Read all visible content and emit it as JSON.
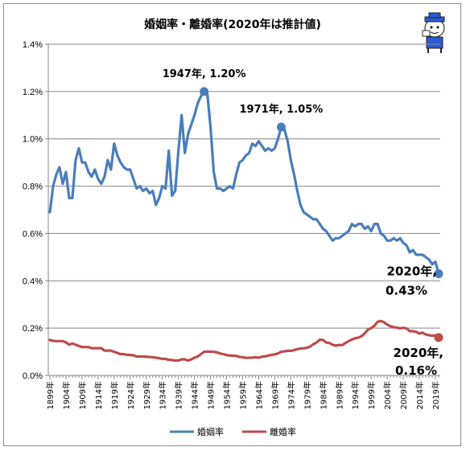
{
  "chart_data": {
    "type": "line",
    "title": "婚姻率・離婚率(2020年は推計値)",
    "ylim": [
      0,
      1.4
    ],
    "yticks": [
      "0.0%",
      "0.2%",
      "0.4%",
      "0.6%",
      "0.8%",
      "1.0%",
      "1.2%",
      "1.4%"
    ],
    "ytick_values": [
      0,
      0.2,
      0.4,
      0.6,
      0.8,
      1.0,
      1.2,
      1.4
    ],
    "x_range": [
      1899,
      2020
    ],
    "xticks": [
      "1899年",
      "1904年",
      "1909年",
      "1914年",
      "1919年",
      "1924年",
      "1929年",
      "1934年",
      "1939年",
      "1944年",
      "1949年",
      "1954年",
      "1959年",
      "1964年",
      "1969年",
      "1974年",
      "1979年",
      "1984年",
      "1989年",
      "1994年",
      "1999年",
      "2004年",
      "2009年",
      "2014年",
      "2019年"
    ],
    "xtick_values": [
      1899,
      1904,
      1909,
      1914,
      1919,
      1924,
      1929,
      1934,
      1939,
      1944,
      1949,
      1954,
      1959,
      1964,
      1969,
      1974,
      1979,
      1984,
      1989,
      1994,
      1999,
      2004,
      2009,
      2014,
      2019
    ],
    "grid": true,
    "legend_position": "bottom",
    "series": [
      {
        "name": "婚姻率",
        "color": "#4a7ebb",
        "points": [
          [
            1899,
            0.69
          ],
          [
            1900,
            0.8
          ],
          [
            1901,
            0.85
          ],
          [
            1902,
            0.88
          ],
          [
            1903,
            0.81
          ],
          [
            1904,
            0.86
          ],
          [
            1905,
            0.75
          ],
          [
            1906,
            0.75
          ],
          [
            1907,
            0.91
          ],
          [
            1908,
            0.96
          ],
          [
            1909,
            0.9
          ],
          [
            1910,
            0.9
          ],
          [
            1911,
            0.86
          ],
          [
            1912,
            0.84
          ],
          [
            1913,
            0.87
          ],
          [
            1914,
            0.83
          ],
          [
            1915,
            0.81
          ],
          [
            1916,
            0.84
          ],
          [
            1917,
            0.91
          ],
          [
            1918,
            0.87
          ],
          [
            1919,
            0.98
          ],
          [
            1920,
            0.93
          ],
          [
            1921,
            0.9
          ],
          [
            1922,
            0.88
          ],
          [
            1923,
            0.87
          ],
          [
            1924,
            0.87
          ],
          [
            1925,
            0.83
          ],
          [
            1926,
            0.79
          ],
          [
            1927,
            0.8
          ],
          [
            1928,
            0.78
          ],
          [
            1929,
            0.79
          ],
          [
            1930,
            0.77
          ],
          [
            1931,
            0.78
          ],
          [
            1932,
            0.72
          ],
          [
            1933,
            0.75
          ],
          [
            1934,
            0.8
          ],
          [
            1935,
            0.79
          ],
          [
            1936,
            0.95
          ],
          [
            1937,
            0.76
          ],
          [
            1938,
            0.78
          ],
          [
            1939,
            0.95
          ],
          [
            1940,
            1.1
          ],
          [
            1941,
            0.94
          ],
          [
            1942,
            1.02
          ],
          [
            1943,
            1.06
          ],
          [
            1944,
            1.1
          ],
          [
            1945,
            1.15
          ],
          [
            1946,
            1.18
          ],
          [
            1947,
            1.2
          ],
          [
            1948,
            1.19
          ],
          [
            1949,
            1.05
          ],
          [
            1950,
            0.86
          ],
          [
            1951,
            0.79
          ],
          [
            1952,
            0.79
          ],
          [
            1953,
            0.78
          ],
          [
            1954,
            0.79
          ],
          [
            1955,
            0.8
          ],
          [
            1956,
            0.79
          ],
          [
            1957,
            0.85
          ],
          [
            1958,
            0.9
          ],
          [
            1959,
            0.91
          ],
          [
            1960,
            0.93
          ],
          [
            1961,
            0.94
          ],
          [
            1962,
            0.98
          ],
          [
            1963,
            0.97
          ],
          [
            1964,
            0.99
          ],
          [
            1965,
            0.97
          ],
          [
            1966,
            0.95
          ],
          [
            1967,
            0.96
          ],
          [
            1968,
            0.95
          ],
          [
            1969,
            0.96
          ],
          [
            1970,
            1.0
          ],
          [
            1971,
            1.05
          ],
          [
            1972,
            1.04
          ],
          [
            1973,
            0.99
          ],
          [
            1974,
            0.91
          ],
          [
            1975,
            0.85
          ],
          [
            1976,
            0.78
          ],
          [
            1977,
            0.72
          ],
          [
            1978,
            0.69
          ],
          [
            1979,
            0.68
          ],
          [
            1980,
            0.67
          ],
          [
            1981,
            0.66
          ],
          [
            1982,
            0.66
          ],
          [
            1983,
            0.64
          ],
          [
            1984,
            0.62
          ],
          [
            1985,
            0.61
          ],
          [
            1986,
            0.59
          ],
          [
            1987,
            0.57
          ],
          [
            1988,
            0.58
          ],
          [
            1989,
            0.58
          ],
          [
            1990,
            0.59
          ],
          [
            1991,
            0.6
          ],
          [
            1992,
            0.61
          ],
          [
            1993,
            0.64
          ],
          [
            1994,
            0.63
          ],
          [
            1995,
            0.64
          ],
          [
            1996,
            0.64
          ],
          [
            1997,
            0.62
          ],
          [
            1998,
            0.63
          ],
          [
            1999,
            0.61
          ],
          [
            2000,
            0.64
          ],
          [
            2001,
            0.64
          ],
          [
            2002,
            0.6
          ],
          [
            2003,
            0.59
          ],
          [
            2004,
            0.57
          ],
          [
            2005,
            0.57
          ],
          [
            2006,
            0.58
          ],
          [
            2007,
            0.57
          ],
          [
            2008,
            0.58
          ],
          [
            2009,
            0.56
          ],
          [
            2010,
            0.55
          ],
          [
            2011,
            0.52
          ],
          [
            2012,
            0.53
          ],
          [
            2013,
            0.51
          ],
          [
            2014,
            0.51
          ],
          [
            2015,
            0.51
          ],
          [
            2016,
            0.5
          ],
          [
            2017,
            0.49
          ],
          [
            2018,
            0.47
          ],
          [
            2019,
            0.48
          ],
          [
            2020,
            0.43
          ]
        ]
      },
      {
        "name": "離婚率",
        "color": "#be4b48",
        "points": [
          [
            1899,
            0.15
          ],
          [
            1900,
            0.146
          ],
          [
            1901,
            0.145
          ],
          [
            1902,
            0.145
          ],
          [
            1903,
            0.145
          ],
          [
            1904,
            0.14
          ],
          [
            1905,
            0.13
          ],
          [
            1906,
            0.135
          ],
          [
            1907,
            0.13
          ],
          [
            1908,
            0.125
          ],
          [
            1909,
            0.12
          ],
          [
            1910,
            0.12
          ],
          [
            1911,
            0.12
          ],
          [
            1912,
            0.115
          ],
          [
            1913,
            0.115
          ],
          [
            1914,
            0.115
          ],
          [
            1915,
            0.115
          ],
          [
            1916,
            0.105
          ],
          [
            1917,
            0.105
          ],
          [
            1918,
            0.105
          ],
          [
            1919,
            0.1
          ],
          [
            1920,
            0.095
          ],
          [
            1921,
            0.09
          ],
          [
            1922,
            0.09
          ],
          [
            1923,
            0.087
          ],
          [
            1924,
            0.087
          ],
          [
            1925,
            0.085
          ],
          [
            1926,
            0.08
          ],
          [
            1927,
            0.08
          ],
          [
            1928,
            0.08
          ],
          [
            1929,
            0.079
          ],
          [
            1930,
            0.078
          ],
          [
            1931,
            0.077
          ],
          [
            1932,
            0.075
          ],
          [
            1933,
            0.073
          ],
          [
            1934,
            0.07
          ],
          [
            1935,
            0.07
          ],
          [
            1936,
            0.066
          ],
          [
            1937,
            0.065
          ],
          [
            1938,
            0.063
          ],
          [
            1939,
            0.063
          ],
          [
            1940,
            0.068
          ],
          [
            1941,
            0.068
          ],
          [
            1942,
            0.063
          ],
          [
            1943,
            0.068
          ],
          [
            1944,
            0.075
          ],
          [
            1945,
            0.08
          ],
          [
            1946,
            0.09
          ],
          [
            1947,
            0.1
          ],
          [
            1948,
            0.101
          ],
          [
            1949,
            0.1
          ],
          [
            1950,
            0.1
          ],
          [
            1951,
            0.097
          ],
          [
            1952,
            0.093
          ],
          [
            1953,
            0.09
          ],
          [
            1954,
            0.086
          ],
          [
            1955,
            0.084
          ],
          [
            1956,
            0.083
          ],
          [
            1957,
            0.083
          ],
          [
            1958,
            0.078
          ],
          [
            1959,
            0.077
          ],
          [
            1960,
            0.074
          ],
          [
            1961,
            0.075
          ],
          [
            1962,
            0.075
          ],
          [
            1963,
            0.077
          ],
          [
            1964,
            0.075
          ],
          [
            1965,
            0.079
          ],
          [
            1966,
            0.081
          ],
          [
            1967,
            0.084
          ],
          [
            1968,
            0.087
          ],
          [
            1969,
            0.089
          ],
          [
            1970,
            0.093
          ],
          [
            1971,
            0.1
          ],
          [
            1972,
            0.102
          ],
          [
            1973,
            0.104
          ],
          [
            1974,
            0.104
          ],
          [
            1975,
            0.107
          ],
          [
            1976,
            0.111
          ],
          [
            1977,
            0.114
          ],
          [
            1978,
            0.115
          ],
          [
            1979,
            0.117
          ],
          [
            1980,
            0.122
          ],
          [
            1981,
            0.132
          ],
          [
            1982,
            0.139
          ],
          [
            1983,
            0.151
          ],
          [
            1984,
            0.15
          ],
          [
            1985,
            0.139
          ],
          [
            1986,
            0.137
          ],
          [
            1987,
            0.13
          ],
          [
            1988,
            0.126
          ],
          [
            1989,
            0.129
          ],
          [
            1990,
            0.128
          ],
          [
            1991,
            0.137
          ],
          [
            1992,
            0.145
          ],
          [
            1993,
            0.152
          ],
          [
            1994,
            0.157
          ],
          [
            1995,
            0.16
          ],
          [
            1996,
            0.166
          ],
          [
            1997,
            0.178
          ],
          [
            1998,
            0.194
          ],
          [
            1999,
            0.2
          ],
          [
            2000,
            0.21
          ],
          [
            2001,
            0.227
          ],
          [
            2002,
            0.23
          ],
          [
            2003,
            0.225
          ],
          [
            2004,
            0.215
          ],
          [
            2005,
            0.208
          ],
          [
            2006,
            0.204
          ],
          [
            2007,
            0.202
          ],
          [
            2008,
            0.199
          ],
          [
            2009,
            0.201
          ],
          [
            2010,
            0.199
          ],
          [
            2011,
            0.187
          ],
          [
            2012,
            0.187
          ],
          [
            2013,
            0.184
          ],
          [
            2014,
            0.177
          ],
          [
            2015,
            0.181
          ],
          [
            2016,
            0.173
          ],
          [
            2017,
            0.17
          ],
          [
            2018,
            0.168
          ],
          [
            2019,
            0.169
          ],
          [
            2020,
            0.16
          ]
        ]
      }
    ],
    "annotations": [
      {
        "line1": "1947年, 1.20%",
        "line2": "",
        "series": 0,
        "x": 1947,
        "y": 1.2,
        "style": "small"
      },
      {
        "line1": "1971年, 1.05%",
        "line2": "",
        "series": 0,
        "x": 1971,
        "y": 1.05,
        "style": "small"
      },
      {
        "line1": "2020年,",
        "line2": "0.43%",
        "series": 0,
        "x": 2020,
        "y": 0.43,
        "style": "big"
      },
      {
        "line1": "2020年,",
        "line2": "0.16%",
        "series": 1,
        "x": 2020,
        "y": 0.16,
        "style": "big"
      }
    ]
  }
}
